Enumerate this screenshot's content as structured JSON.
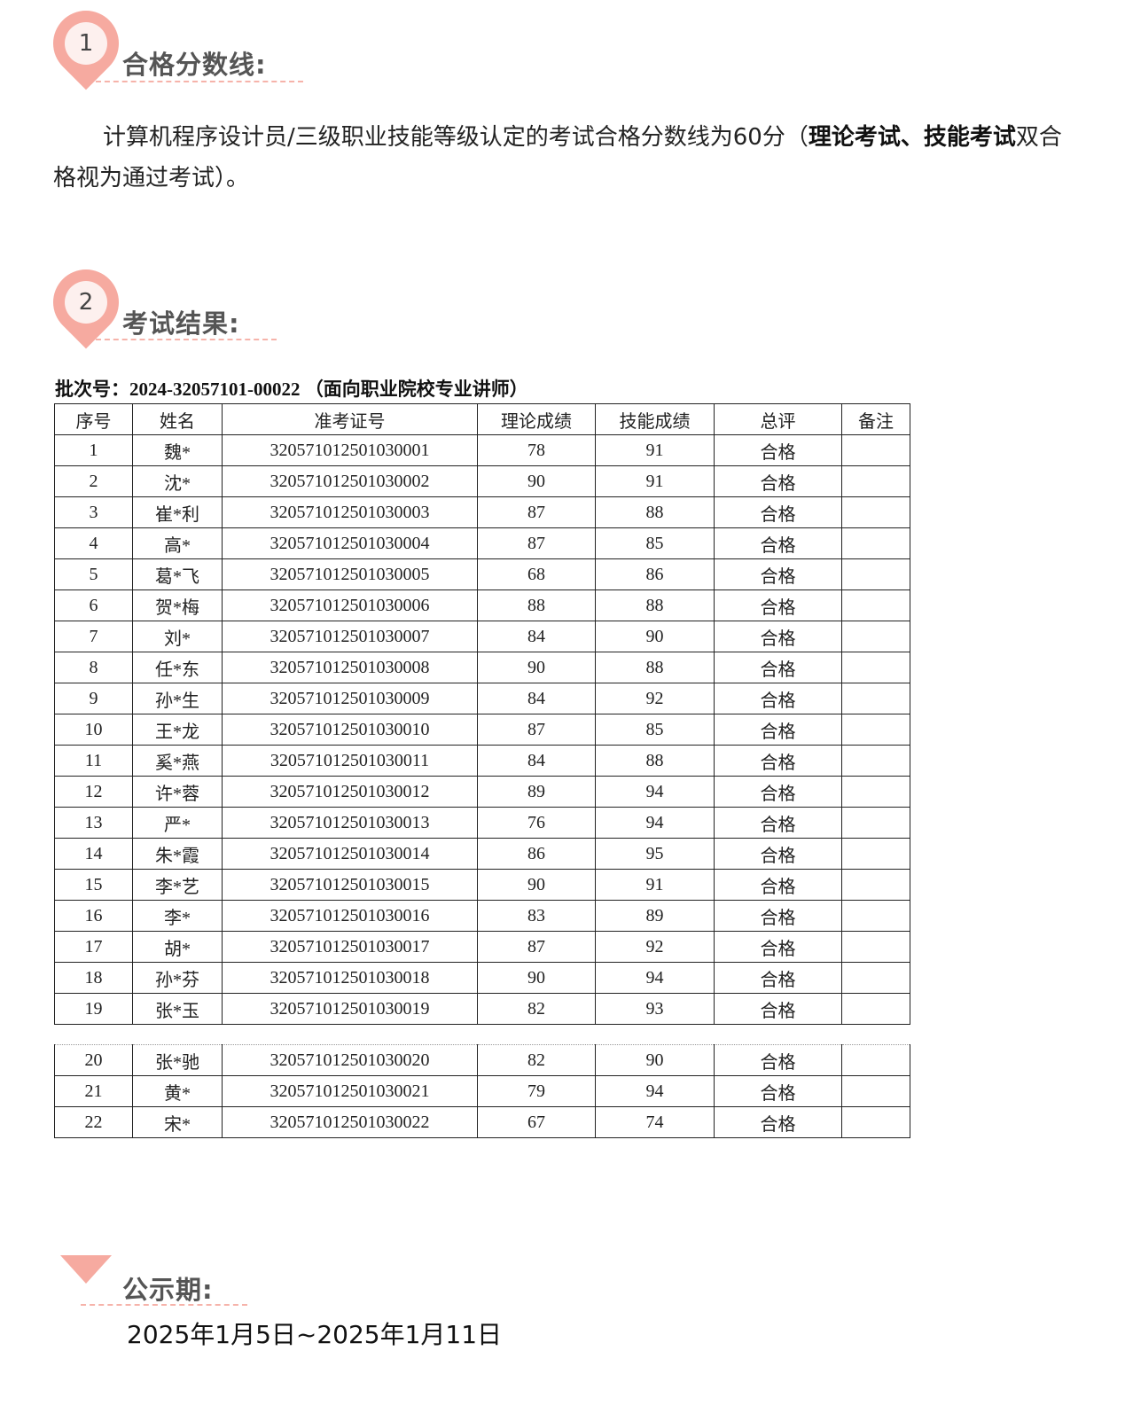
{
  "section1": {
    "number": "1",
    "title": "合格分数线:"
  },
  "paragraph": {
    "prefix": "计算机程序设计员/三级职业技能等级认定的考试合格分数线为60分（",
    "bold": "理论考试、技能考试",
    "suffix": "双合格视为通过考试）。"
  },
  "section2": {
    "number": "2",
    "title": "考试结果:"
  },
  "batch": "批次号：2024-32057101-00022 （面向职业院校专业讲师）",
  "table": {
    "headers": [
      "序号",
      "姓名",
      "准考证号",
      "理论成绩",
      "技能成绩",
      "总评",
      "备注"
    ],
    "rows": [
      [
        "1",
        "魏*",
        "320571012501030001",
        "78",
        "91",
        "合格",
        ""
      ],
      [
        "2",
        "沈*",
        "320571012501030002",
        "90",
        "91",
        "合格",
        ""
      ],
      [
        "3",
        "崔*利",
        "320571012501030003",
        "87",
        "88",
        "合格",
        ""
      ],
      [
        "4",
        "高*",
        "320571012501030004",
        "87",
        "85",
        "合格",
        ""
      ],
      [
        "5",
        "葛*飞",
        "320571012501030005",
        "68",
        "86",
        "合格",
        ""
      ],
      [
        "6",
        "贺*梅",
        "320571012501030006",
        "88",
        "88",
        "合格",
        ""
      ],
      [
        "7",
        "刘*",
        "320571012501030007",
        "84",
        "90",
        "合格",
        ""
      ],
      [
        "8",
        "任*东",
        "320571012501030008",
        "90",
        "88",
        "合格",
        ""
      ],
      [
        "9",
        "孙*生",
        "320571012501030009",
        "84",
        "92",
        "合格",
        ""
      ],
      [
        "10",
        "王*龙",
        "320571012501030010",
        "87",
        "85",
        "合格",
        ""
      ],
      [
        "11",
        "奚*燕",
        "320571012501030011",
        "84",
        "88",
        "合格",
        ""
      ],
      [
        "12",
        "许*蓉",
        "320571012501030012",
        "89",
        "94",
        "合格",
        ""
      ],
      [
        "13",
        "严*",
        "320571012501030013",
        "76",
        "94",
        "合格",
        ""
      ],
      [
        "14",
        "朱*霞",
        "320571012501030014",
        "86",
        "95",
        "合格",
        ""
      ],
      [
        "15",
        "李*艺",
        "320571012501030015",
        "90",
        "91",
        "合格",
        ""
      ],
      [
        "16",
        "李*",
        "320571012501030016",
        "83",
        "89",
        "合格",
        ""
      ],
      [
        "17",
        "胡*",
        "320571012501030017",
        "87",
        "92",
        "合格",
        ""
      ],
      [
        "18",
        "孙*芬",
        "320571012501030018",
        "90",
        "94",
        "合格",
        ""
      ],
      [
        "19",
        "张*玉",
        "320571012501030019",
        "82",
        "93",
        "合格",
        ""
      ]
    ],
    "rows_continued": [
      [
        "20",
        "张*驰",
        "320571012501030020",
        "82",
        "90",
        "合格",
        ""
      ],
      [
        "21",
        "黄*",
        "320571012501030021",
        "79",
        "94",
        "合格",
        ""
      ],
      [
        "22",
        "宋*",
        "320571012501030022",
        "67",
        "74",
        "合格",
        ""
      ]
    ]
  },
  "section3": {
    "title": "公示期:"
  },
  "period": "2025年1月5日~2025年1月11日",
  "colors": {
    "accent": "#f6aaa0",
    "title": "#555555"
  }
}
